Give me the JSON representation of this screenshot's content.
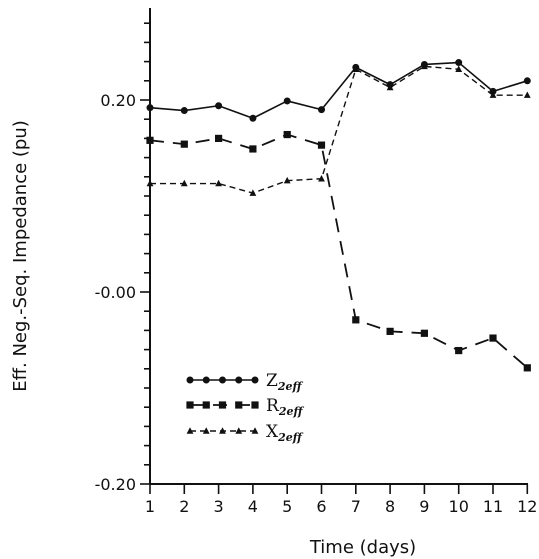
{
  "chart_data": {
    "type": "line",
    "title": "",
    "xlabel": "Time (days)",
    "ylabel": "Eff. Neg.-Seq. Impedance (pu)",
    "x": [
      1,
      2,
      3,
      4,
      5,
      6,
      7,
      8,
      9,
      10,
      11,
      12
    ],
    "xlim": [
      1,
      12
    ],
    "ylim": [
      -0.2,
      0.3
    ],
    "x_tick_labels": [
      "1",
      "2",
      "3",
      "4",
      "5",
      "6",
      "7",
      "8",
      "9",
      "10",
      "11",
      "12"
    ],
    "y_ticks": [
      -0.2,
      0.0,
      0.2
    ],
    "y_tick_labels": [
      "-0.20",
      "-0.00",
      "0.20"
    ],
    "grid": false,
    "legend_position": "bottom-left",
    "series": [
      {
        "name": "Z",
        "subscript": "2eff",
        "marker": "circle",
        "dash": "solid",
        "values": [
          0.192,
          0.189,
          0.194,
          0.181,
          0.199,
          0.19,
          0.234,
          0.216,
          0.237,
          0.239,
          0.209,
          0.22
        ]
      },
      {
        "name": "R",
        "subscript": "2eff",
        "marker": "square",
        "dash": "long-dash",
        "values": [
          0.158,
          0.154,
          0.16,
          0.149,
          0.164,
          0.153,
          -0.029,
          -0.041,
          -0.043,
          -0.061,
          -0.048,
          -0.079
        ]
      },
      {
        "name": "X",
        "subscript": "2eff",
        "marker": "triangle",
        "dash": "short-dash",
        "values": [
          0.113,
          0.113,
          0.113,
          0.103,
          0.116,
          0.118,
          0.232,
          0.213,
          0.235,
          0.232,
          0.205,
          0.205
        ]
      }
    ]
  }
}
